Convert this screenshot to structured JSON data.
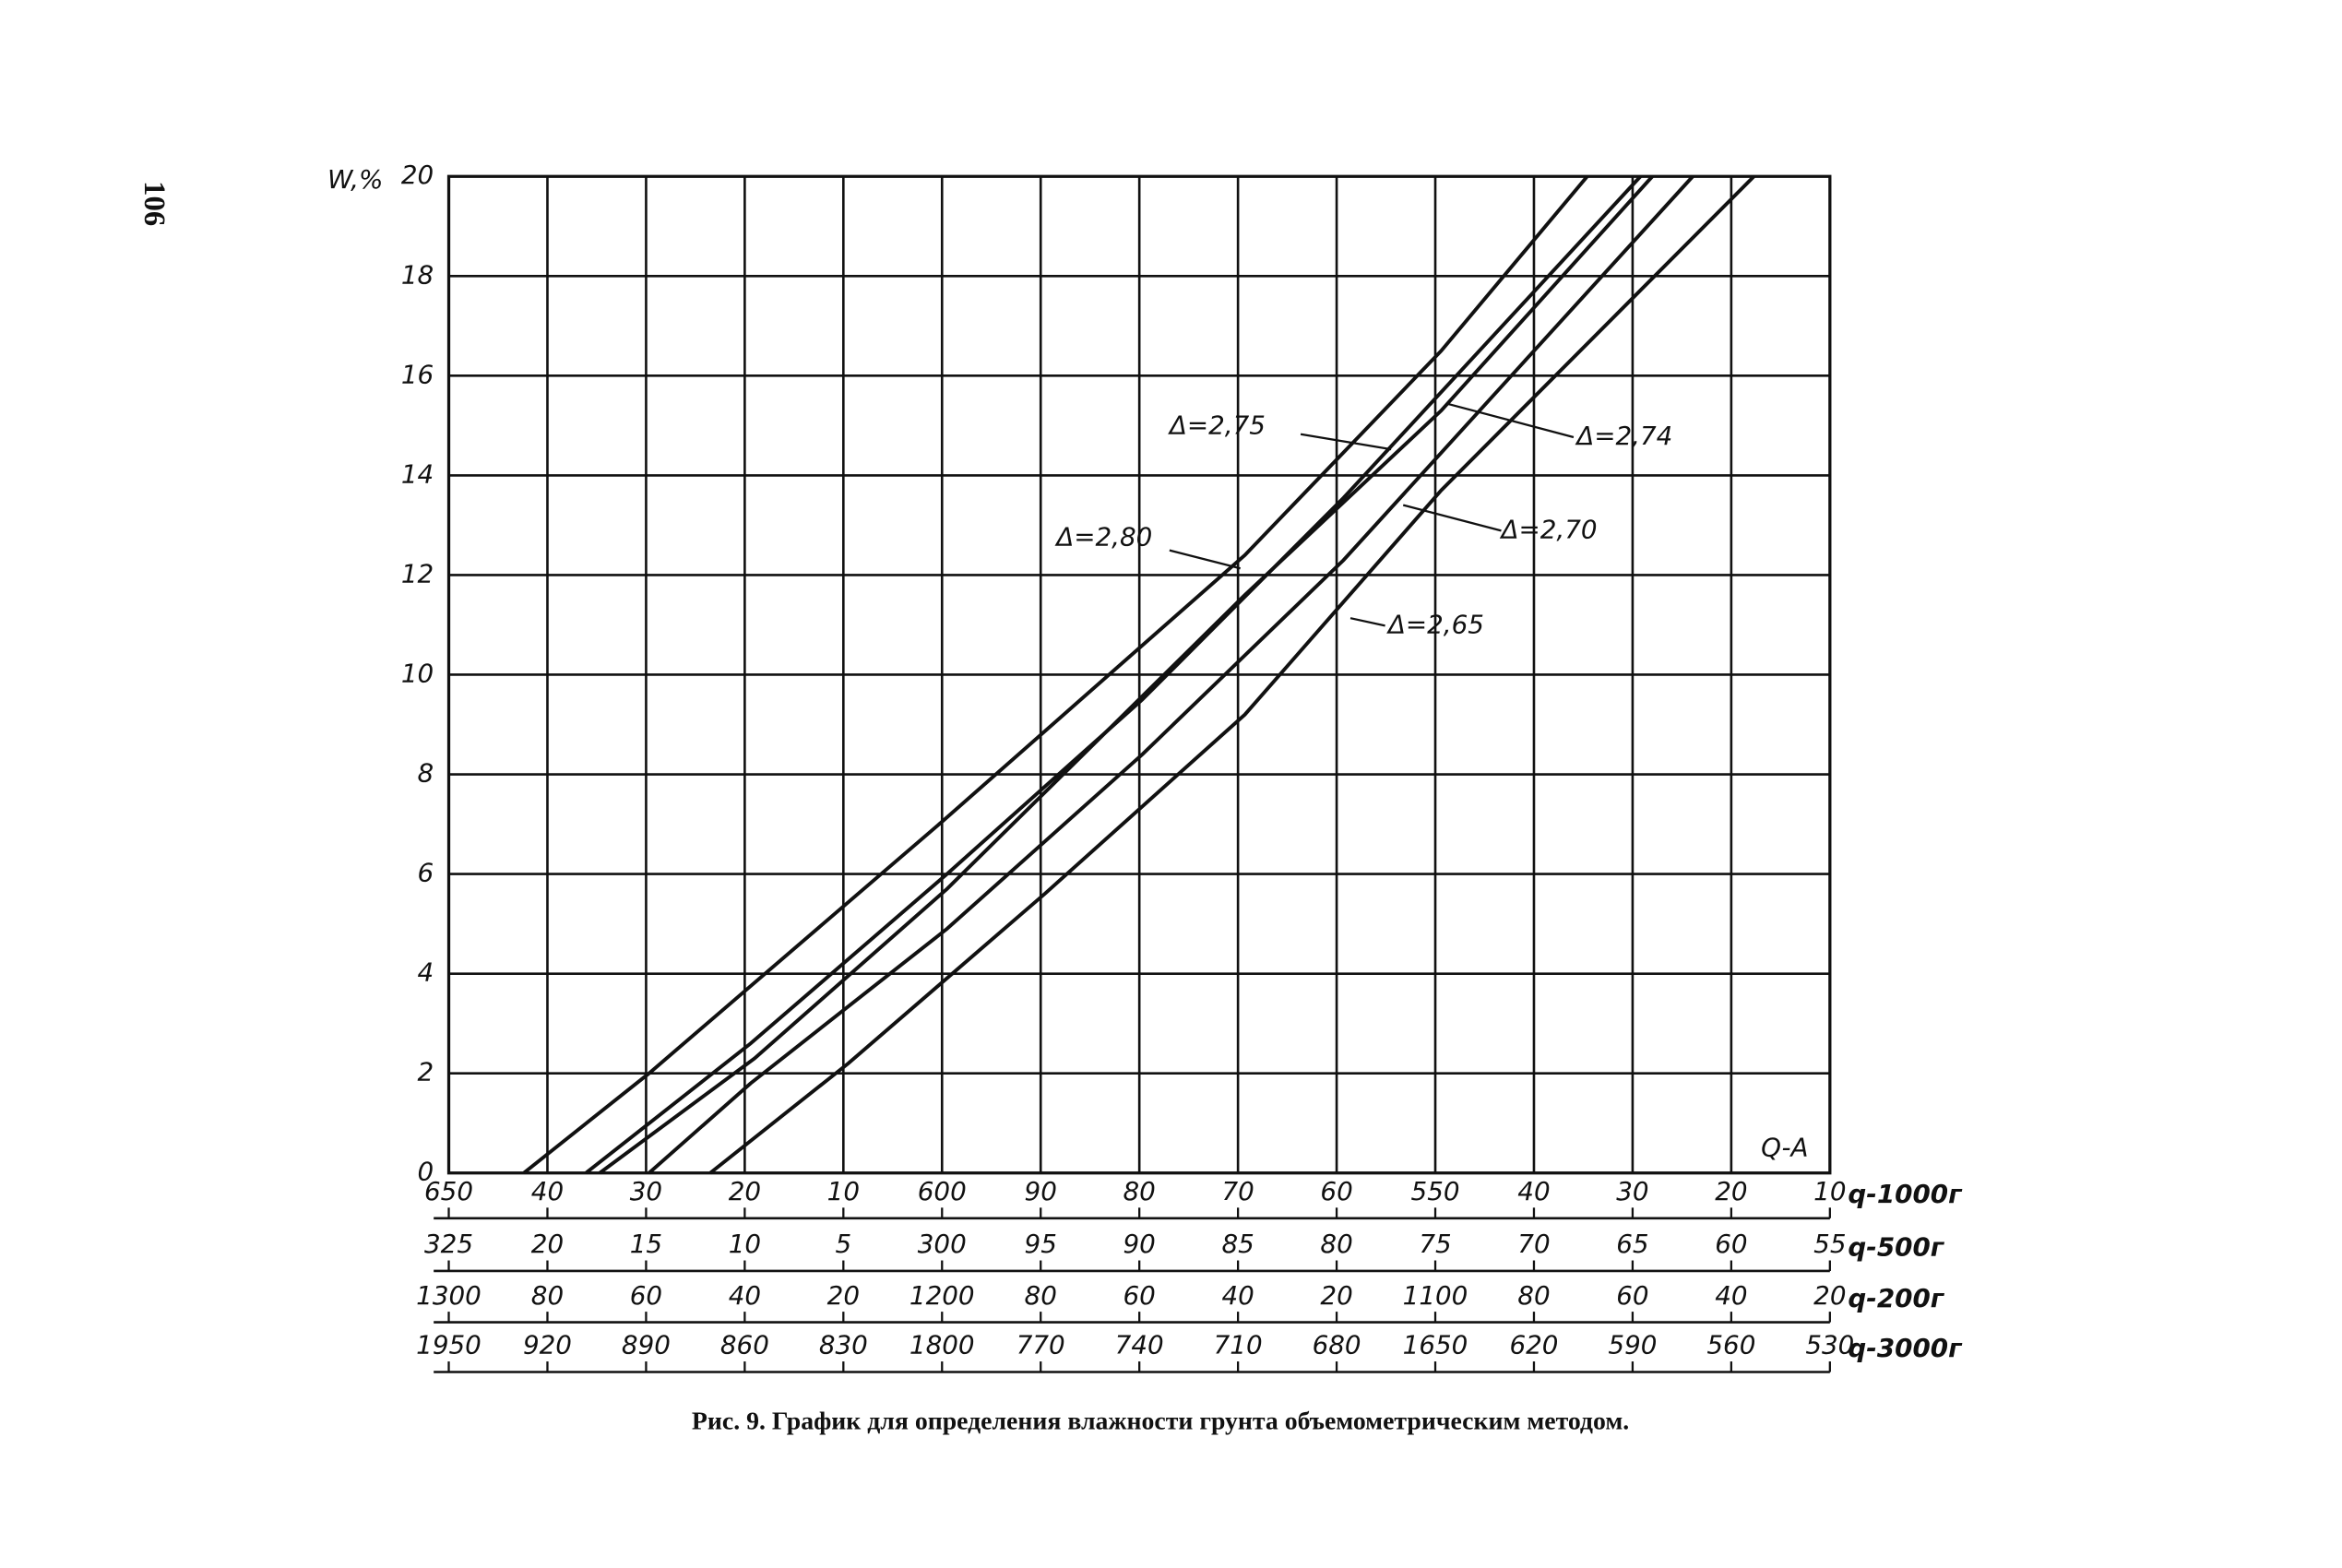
{
  "page": {
    "number": "106"
  },
  "chart_data": {
    "type": "line",
    "ylabel": "W,%",
    "annotation": "Q-A",
    "caption": "Рис. 9.  График для определения влажности грунта объемометрическим методом.",
    "xlim": [
      0,
      14
    ],
    "ylim": [
      0,
      20
    ],
    "yticks": [
      0,
      2,
      4,
      6,
      8,
      10,
      12,
      14,
      16,
      18,
      20
    ],
    "grid": true,
    "color": "#111111",
    "x_axes": [
      {
        "name": "q-1000г",
        "labels": [
          650,
          40,
          30,
          20,
          10,
          600,
          90,
          80,
          70,
          60,
          550,
          40,
          30,
          20,
          10
        ]
      },
      {
        "name": "q-500г",
        "labels": [
          325,
          20,
          15,
          10,
          5,
          300,
          95,
          90,
          85,
          80,
          75,
          70,
          65,
          60,
          55
        ]
      },
      {
        "name": "q-200г",
        "labels": [
          1300,
          80,
          60,
          40,
          20,
          1200,
          80,
          60,
          40,
          20,
          1100,
          80,
          60,
          40,
          20
        ]
      },
      {
        "name": "q-3000г",
        "labels": [
          1950,
          920,
          890,
          860,
          830,
          1800,
          770,
          740,
          710,
          680,
          1650,
          620,
          590,
          560,
          530
        ]
      }
    ],
    "series": [
      {
        "name": "Δ=2,80",
        "x": [
          0.76,
          2.03,
          5.0,
          8.07,
          10.06,
          11.54
        ],
        "values": [
          0,
          2,
          7.05,
          12.4,
          16.5,
          20
        ]
      },
      {
        "name": "Δ=2,75",
        "x": [
          1.39,
          3.06,
          5.05,
          7.03,
          9.07,
          12.08
        ],
        "values": [
          0,
          2.6,
          6,
          9.5,
          13.55,
          20
        ]
      },
      {
        "name": "Δ=2,74",
        "x": [
          1.53,
          3.1,
          5.05,
          8.07,
          10.06,
          12.2
        ],
        "values": [
          0,
          2.3,
          5.7,
          11.6,
          15.3,
          20
        ]
      },
      {
        "name": "Δ=2,70",
        "x": [
          2.03,
          3.06,
          5.05,
          7.03,
          9.07,
          12.61
        ],
        "values": [
          0,
          1.8,
          4.9,
          8.4,
          12.3,
          20
        ]
      },
      {
        "name": "Δ=2,65",
        "x": [
          2.65,
          4.05,
          6.04,
          8.07,
          10.06,
          13.23
        ],
        "values": [
          0,
          2.2,
          5.6,
          9.2,
          13.7,
          20
        ]
      }
    ]
  }
}
